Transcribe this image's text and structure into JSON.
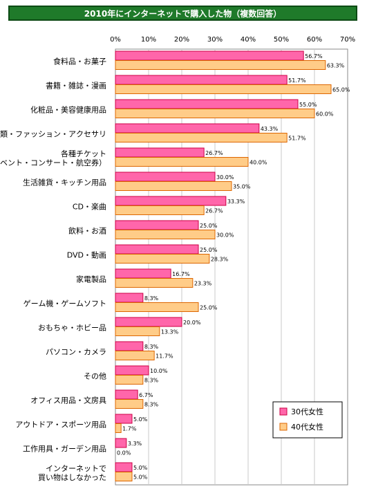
{
  "chart_data": {
    "type": "bar",
    "orientation": "horizontal",
    "title": "2010年にインターネットで購入した物（複数回答）",
    "categories": [
      [
        "食料品・お菓子"
      ],
      [
        "書籍・雑誌・漫画"
      ],
      [
        "化粧品・美容健康用品"
      ],
      [
        "衣類・ファッション・アクセサリ"
      ],
      [
        "各種チケット",
        "（イベント・コンサート・航空券）"
      ],
      [
        "生活雑貨・キッチン用品"
      ],
      [
        "CD・楽曲"
      ],
      [
        "飲料・お酒"
      ],
      [
        "DVD・動画"
      ],
      [
        "家電製品"
      ],
      [
        "ゲーム機・ゲームソフト"
      ],
      [
        "おもちゃ・ホビー品"
      ],
      [
        "パソコン・カメラ"
      ],
      [
        "その他"
      ],
      [
        "オフィス用品・文房具"
      ],
      [
        "アウトドア・スポーツ用品"
      ],
      [
        "工作用具・ガーデン用品"
      ],
      [
        "インターネットで",
        "買い物はしなかった"
      ]
    ],
    "series": [
      {
        "name": "30代女性",
        "color": "#ff66aa",
        "stroke": "#cc0044",
        "values": [
          56.7,
          51.7,
          55.0,
          43.3,
          26.7,
          30.0,
          33.3,
          25.0,
          25.0,
          16.7,
          8.3,
          20.0,
          8.3,
          10.0,
          6.7,
          5.0,
          3.3,
          5.0
        ],
        "labels": [
          "56.7%",
          "51.7%",
          "55.0%",
          "43.3%",
          "26.7%",
          "30.0%",
          "33.3%",
          "25.0%",
          "25.0%",
          "16.7%",
          "8.3%",
          "20.0%",
          "8.3%",
          "10.0%",
          "6.7%",
          "5.0%",
          "3.3%",
          "5.0%"
        ]
      },
      {
        "name": "40代女性",
        "color": "#ffcc88",
        "stroke": "#dd6600",
        "values": [
          63.3,
          65.0,
          60.0,
          51.7,
          40.0,
          35.0,
          26.7,
          30.0,
          28.3,
          23.3,
          25.0,
          13.3,
          11.7,
          8.3,
          8.3,
          1.7,
          0.0,
          5.0
        ],
        "labels": [
          "63.3%",
          "65.0%",
          "60.0%",
          "51.7%",
          "40.0%",
          "35.0%",
          "26.7%",
          "30.0%",
          "28.3%",
          "23.3%",
          "25.0%",
          "13.3%",
          "11.7%",
          "8.3%",
          "8.3%",
          "1.7%",
          "0.0%",
          "5.0%"
        ]
      }
    ],
    "xlim": [
      0,
      70
    ],
    "xticks": [
      "0%",
      "10%",
      "20%",
      "30%",
      "40%",
      "50%",
      "60%",
      "70%"
    ],
    "grid": true,
    "legend_position": "bottom-right"
  }
}
